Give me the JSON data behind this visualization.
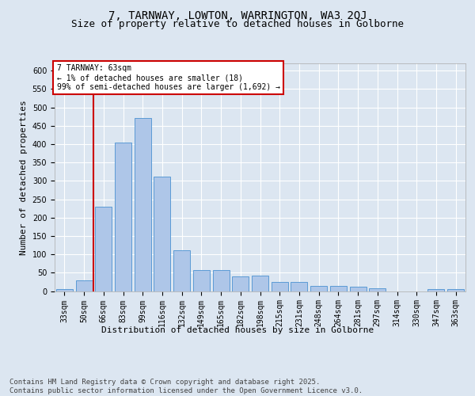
{
  "title_line1": "7, TARNWAY, LOWTON, WARRINGTON, WA3 2QJ",
  "title_line2": "Size of property relative to detached houses in Golborne",
  "xlabel": "Distribution of detached houses by size in Golborne",
  "ylabel": "Number of detached properties",
  "categories": [
    "33sqm",
    "50sqm",
    "66sqm",
    "83sqm",
    "99sqm",
    "116sqm",
    "132sqm",
    "149sqm",
    "165sqm",
    "182sqm",
    "198sqm",
    "215sqm",
    "231sqm",
    "248sqm",
    "264sqm",
    "281sqm",
    "297sqm",
    "314sqm",
    "330sqm",
    "347sqm",
    "363sqm"
  ],
  "values": [
    5,
    30,
    230,
    405,
    472,
    312,
    110,
    57,
    57,
    40,
    42,
    25,
    25,
    14,
    14,
    11,
    7,
    0,
    0,
    5,
    5
  ],
  "bar_color": "#aec6e8",
  "bar_edge_color": "#5b9bd5",
  "annotation_line_color": "#cc0000",
  "annotation_box_text": "7 TARNWAY: 63sqm\n← 1% of detached houses are smaller (18)\n99% of semi-detached houses are larger (1,692) →",
  "ylim": [
    0,
    620
  ],
  "yticks": [
    0,
    50,
    100,
    150,
    200,
    250,
    300,
    350,
    400,
    450,
    500,
    550,
    600
  ],
  "background_color": "#dce6f1",
  "plot_bg_color": "#dce6f1",
  "grid_color": "#ffffff",
  "footer_text": "Contains HM Land Registry data © Crown copyright and database right 2025.\nContains public sector information licensed under the Open Government Licence v3.0.",
  "title_fontsize": 10,
  "subtitle_fontsize": 9,
  "axis_label_fontsize": 8,
  "tick_label_fontsize": 7,
  "annotation_fontsize": 7,
  "footer_fontsize": 6.5
}
